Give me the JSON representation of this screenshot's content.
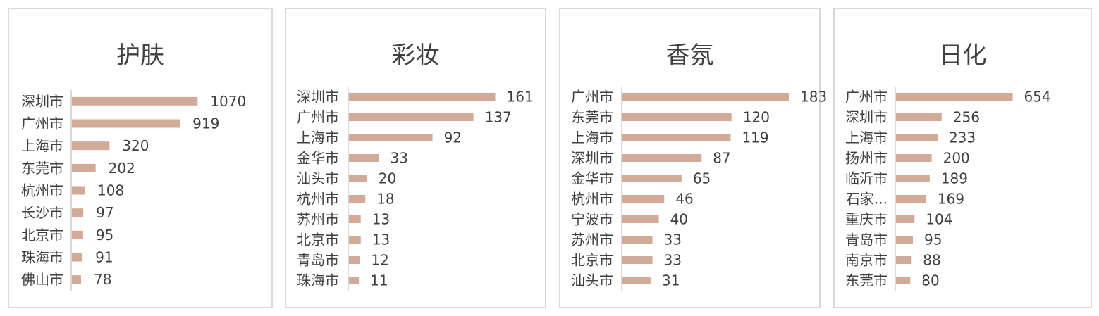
{
  "bar_color": "#d2ab98",
  "axis_color": "#d9d9d9",
  "chart_data": [
    {
      "type": "bar",
      "orientation": "horizontal",
      "title": "护肤",
      "categories": [
        "深圳市",
        "广州市",
        "上海市",
        "东莞市",
        "杭州市",
        "长沙市",
        "北京市",
        "珠海市",
        "佛山市"
      ],
      "values": [
        1070,
        919,
        320,
        202,
        108,
        97,
        95,
        91,
        78
      ],
      "xlim": [
        0,
        1260
      ],
      "grid": false,
      "legend": "none"
    },
    {
      "type": "bar",
      "orientation": "horizontal",
      "title": "彩妆",
      "categories": [
        "深圳市",
        "广州市",
        "上海市",
        "金华市",
        "汕头市",
        "杭州市",
        "苏州市",
        "北京市",
        "青岛市",
        "珠海市"
      ],
      "values": [
        161,
        137,
        92,
        33,
        20,
        18,
        13,
        13,
        12,
        11
      ],
      "xlim": [
        0,
        180
      ],
      "grid": false,
      "legend": "none"
    },
    {
      "type": "bar",
      "orientation": "horizontal",
      "title": "香氛",
      "categories": [
        "广州市",
        "东莞市",
        "上海市",
        "深圳市",
        "金华市",
        "杭州市",
        "宁波市",
        "苏州市",
        "北京市",
        "汕头市"
      ],
      "values": [
        183,
        120,
        119,
        87,
        65,
        46,
        40,
        33,
        33,
        31
      ],
      "xlim": [
        0,
        183
      ],
      "grid": false,
      "legend": "none"
    },
    {
      "type": "bar",
      "orientation": "horizontal",
      "title": "日化",
      "categories": [
        "广州市",
        "深圳市",
        "上海市",
        "扬州市",
        "临沂市",
        "石家...",
        "重庆市",
        "青岛市",
        "南京市",
        "东莞市"
      ],
      "values": [
        654,
        256,
        233,
        200,
        189,
        169,
        104,
        95,
        88,
        80
      ],
      "xlim": [
        0,
        1000
      ],
      "grid": false,
      "legend": "none"
    }
  ]
}
